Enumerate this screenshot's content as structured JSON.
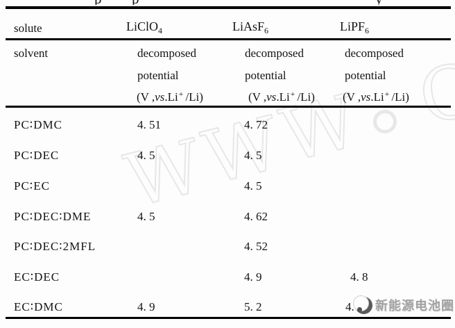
{
  "caption_fragments": [
    "p",
    "p",
    "y"
  ],
  "table": {
    "solute_label": "solute",
    "solvent_label": "solvent",
    "solutes": [
      {
        "name": "LiClO",
        "sub": "4"
      },
      {
        "name": "LiAsF",
        "sub": "6"
      },
      {
        "name": "LiPF",
        "sub": "6"
      }
    ],
    "subheader": {
      "word1": "decomposed",
      "word2": "potential",
      "unit_prefix": "(V ,",
      "unit_vs": "vs",
      "unit_mid": ".Li",
      "unit_sup": "+",
      "unit_suffix": "/Li)"
    },
    "rows": [
      {
        "solvent": "PC∶DMC",
        "values": [
          "4. 51",
          "4. 72",
          ""
        ]
      },
      {
        "solvent": "PC∶DEC",
        "values": [
          "4. 5",
          "4. 5",
          ""
        ]
      },
      {
        "solvent": "PC∶EC",
        "values": [
          "",
          "4. 5",
          ""
        ]
      },
      {
        "solvent": "PC∶DEC∶DME",
        "values": [
          "4. 5",
          "4. 62",
          ""
        ]
      },
      {
        "solvent": "PC∶DEC∶2MFL",
        "values": [
          "",
          "4. 52",
          ""
        ]
      },
      {
        "solvent": "EC∶DEC",
        "values": [
          "",
          "4. 9",
          "4. 8"
        ]
      },
      {
        "solvent": "EC∶DMC",
        "values": [
          "4. 9",
          "5. 2",
          "4. 9"
        ]
      }
    ]
  },
  "watermark": {
    "letters": [
      "W",
      "W",
      "W",
      ".",
      "C"
    ],
    "color": "#e7e7e7"
  },
  "logo": {
    "text": "新能源电池圈",
    "text_color": "#a2a2a2"
  }
}
